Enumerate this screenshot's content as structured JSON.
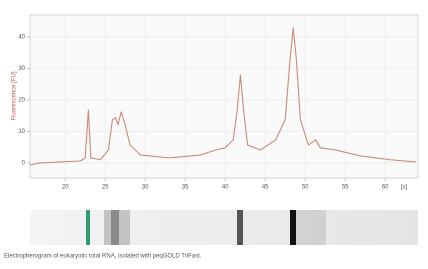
{
  "chart_data": {
    "type": "line",
    "ylabel": "Fluorescence [FU]",
    "xlabel": "[s]",
    "caption": "Electropherogram of eukaryotic total RNA, isolated with peqGOLD TriFast.",
    "x": [
      15.6,
      16.9,
      21.9,
      22.5,
      22.9,
      23.2,
      24.4,
      25.4,
      25.9,
      26.3,
      26.6,
      27,
      27.5,
      28.1,
      29.4,
      33.1,
      36.9,
      38.8,
      40,
      41,
      41.5,
      41.9,
      42.3,
      42.8,
      44.4,
      46.3,
      47.5,
      48.1,
      48.5,
      48.9,
      49.4,
      50.4,
      51.3,
      51.9,
      53.8,
      56.9,
      60.6,
      63.8
    ],
    "values": [
      -0.6,
      0,
      0.6,
      1.6,
      16.8,
      1.6,
      1,
      4.1,
      13.7,
      14.3,
      12.1,
      16.2,
      12.1,
      5.7,
      2.5,
      1.6,
      2.5,
      4.1,
      4.8,
      7.3,
      16.8,
      27.9,
      16.8,
      5.7,
      4.1,
      7.3,
      13.7,
      32.7,
      42.9,
      32.7,
      13.7,
      5.7,
      7.3,
      4.8,
      4.1,
      2.2,
      1,
      0.3
    ],
    "color": "#c98a7a",
    "xlim": [
      15.6,
      64.1
    ],
    "ylim": [
      -4.8,
      47
    ],
    "xticks": [
      20,
      25,
      30,
      35,
      40,
      45,
      50,
      55,
      60
    ],
    "yticks": [
      0,
      10,
      20,
      30,
      40
    ],
    "grid": true
  }
}
